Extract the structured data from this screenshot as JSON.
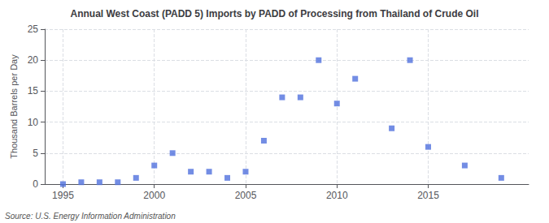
{
  "chart_data": {
    "type": "scatter",
    "title": "Annual West Coast (PADD 5) Imports by PADD of Processing from Thailand of Crude Oil",
    "ylabel": "Thousand Barrels per Day",
    "annotations": [
      "Source: U.S. Energy Information Administration"
    ],
    "x": [
      1995,
      1996,
      1997,
      1998,
      1999,
      2000,
      2001,
      2002,
      2003,
      2004,
      2005,
      2006,
      2007,
      2008,
      2009,
      2010,
      2011,
      2013,
      2014,
      2015,
      2017,
      2019
    ],
    "values": [
      0,
      0.3,
      0.3,
      0.3,
      1,
      3,
      5,
      2,
      2,
      1,
      2,
      7,
      14,
      14,
      20,
      13,
      17,
      9,
      20,
      6,
      3,
      1
    ],
    "marker": "square",
    "xlim": [
      1994.0,
      2020.5
    ],
    "xticks": [
      1995,
      2000,
      2005,
      2010,
      2015
    ],
    "ylim": [
      0,
      25
    ],
    "yticks": [
      0,
      5,
      10,
      15,
      20,
      25
    ],
    "grid": true
  }
}
